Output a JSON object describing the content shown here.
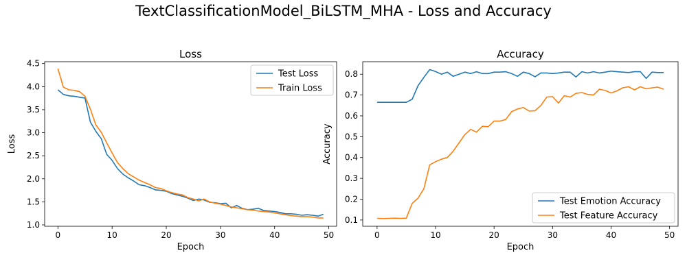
{
  "suptitle": "TextClassificationModel_BiLSTM_MHA - Loss and Accuracy",
  "colors": {
    "blue": "#1f77b4",
    "orange": "#ff7f0e"
  },
  "chart_data": [
    {
      "type": "line",
      "title": "Loss",
      "xlabel": "Epoch",
      "ylabel": "Loss",
      "xlim": [
        -2.45,
        51.45
      ],
      "ylim": [
        0.97,
        4.54
      ],
      "xticks": [
        0,
        10,
        20,
        30,
        40,
        50
      ],
      "yticks": [
        1.0,
        1.5,
        2.0,
        2.5,
        3.0,
        3.5,
        4.0,
        4.5
      ],
      "ytick_labels": [
        "1.0",
        "1.5",
        "2.0",
        "2.5",
        "3.0",
        "3.5",
        "4.0",
        "4.5"
      ],
      "grid": false,
      "legend_position": "top-right",
      "x": [
        0,
        1,
        2,
        3,
        4,
        5,
        6,
        7,
        8,
        9,
        10,
        11,
        12,
        13,
        14,
        15,
        16,
        17,
        18,
        19,
        20,
        21,
        22,
        23,
        24,
        25,
        26,
        27,
        28,
        29,
        30,
        31,
        32,
        33,
        34,
        35,
        36,
        37,
        38,
        39,
        40,
        41,
        42,
        43,
        44,
        45,
        46,
        47,
        48,
        49
      ],
      "series": [
        {
          "name": "Test Loss",
          "color": "#1f77b4",
          "values": [
            3.93,
            3.83,
            3.8,
            3.79,
            3.77,
            3.75,
            3.23,
            3.03,
            2.87,
            2.53,
            2.4,
            2.22,
            2.1,
            2.02,
            1.95,
            1.87,
            1.85,
            1.81,
            1.76,
            1.75,
            1.73,
            1.68,
            1.65,
            1.62,
            1.58,
            1.53,
            1.56,
            1.54,
            1.49,
            1.48,
            1.46,
            1.47,
            1.37,
            1.42,
            1.36,
            1.33,
            1.34,
            1.36,
            1.31,
            1.3,
            1.29,
            1.27,
            1.24,
            1.24,
            1.23,
            1.21,
            1.22,
            1.21,
            1.19,
            1.23
          ]
        },
        {
          "name": "Train Loss",
          "color": "#ff7f0e",
          "values": [
            4.39,
            3.99,
            3.93,
            3.92,
            3.89,
            3.79,
            3.51,
            3.17,
            3.01,
            2.78,
            2.56,
            2.35,
            2.22,
            2.11,
            2.04,
            1.97,
            1.92,
            1.87,
            1.81,
            1.79,
            1.74,
            1.7,
            1.67,
            1.65,
            1.59,
            1.56,
            1.52,
            1.56,
            1.5,
            1.47,
            1.45,
            1.42,
            1.39,
            1.37,
            1.35,
            1.33,
            1.32,
            1.3,
            1.29,
            1.28,
            1.26,
            1.24,
            1.22,
            1.2,
            1.19,
            1.18,
            1.18,
            1.17,
            1.15,
            1.15
          ]
        }
      ]
    },
    {
      "type": "line",
      "title": "Accuracy",
      "xlabel": "Epoch",
      "ylabel": "Accuracy",
      "xlim": [
        -2.45,
        51.45
      ],
      "ylim": [
        0.07,
        0.86
      ],
      "xticks": [
        0,
        10,
        20,
        30,
        40,
        50
      ],
      "yticks": [
        0.1,
        0.2,
        0.3,
        0.4,
        0.5,
        0.6,
        0.7,
        0.8
      ],
      "ytick_labels": [
        "0.1",
        "0.2",
        "0.3",
        "0.4",
        "0.5",
        "0.6",
        "0.7",
        "0.8"
      ],
      "grid": false,
      "legend_position": "bottom-right",
      "x": [
        0,
        1,
        2,
        3,
        4,
        5,
        6,
        7,
        8,
        9,
        10,
        11,
        12,
        13,
        14,
        15,
        16,
        17,
        18,
        19,
        20,
        21,
        22,
        23,
        24,
        25,
        26,
        27,
        28,
        29,
        30,
        31,
        32,
        33,
        34,
        35,
        36,
        37,
        38,
        39,
        40,
        41,
        42,
        43,
        44,
        45,
        46,
        47,
        48,
        49
      ],
      "series": [
        {
          "name": "Test Emotion Accuracy",
          "color": "#1f77b4",
          "values": [
            0.665,
            0.665,
            0.665,
            0.665,
            0.665,
            0.665,
            0.68,
            0.745,
            0.785,
            0.822,
            0.813,
            0.8,
            0.81,
            0.79,
            0.8,
            0.81,
            0.803,
            0.812,
            0.803,
            0.803,
            0.81,
            0.81,
            0.812,
            0.803,
            0.79,
            0.81,
            0.803,
            0.788,
            0.806,
            0.806,
            0.803,
            0.806,
            0.81,
            0.81,
            0.787,
            0.812,
            0.806,
            0.812,
            0.806,
            0.81,
            0.815,
            0.812,
            0.81,
            0.808,
            0.812,
            0.812,
            0.78,
            0.81,
            0.808,
            0.808
          ]
        },
        {
          "name": "Test Feature Accuracy",
          "color": "#ff7f0e",
          "values": [
            0.108,
            0.107,
            0.108,
            0.109,
            0.108,
            0.109,
            0.18,
            0.205,
            0.25,
            0.365,
            0.38,
            0.392,
            0.4,
            0.43,
            0.47,
            0.51,
            0.535,
            0.522,
            0.55,
            0.548,
            0.575,
            0.575,
            0.583,
            0.62,
            0.633,
            0.64,
            0.623,
            0.625,
            0.65,
            0.69,
            0.692,
            0.662,
            0.697,
            0.69,
            0.708,
            0.712,
            0.703,
            0.7,
            0.728,
            0.722,
            0.71,
            0.72,
            0.735,
            0.74,
            0.725,
            0.74,
            0.73,
            0.735,
            0.738,
            0.728
          ]
        }
      ]
    }
  ]
}
